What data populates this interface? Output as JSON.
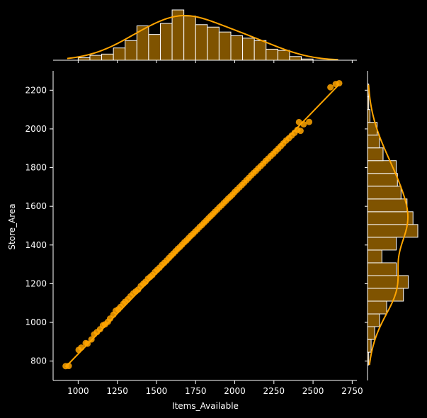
{
  "chart_data": {
    "type": "scatter",
    "kind": "jointplot",
    "xlabel": "Items_Available",
    "ylabel": "Store_Area",
    "xlim": [
      840,
      2780
    ],
    "ylim": [
      700,
      2300
    ],
    "x_ticks": [
      1000,
      1250,
      1500,
      1750,
      2000,
      2250,
      2500,
      2750
    ],
    "y_ticks": [
      800,
      1000,
      1200,
      1400,
      1600,
      1800,
      2000,
      2200
    ],
    "grid": false,
    "legend": "none",
    "colors": {
      "background": "#000000",
      "points": "#ffa500",
      "fit_line": "#ffa500",
      "bars": "#7f5300",
      "bar_edge": "#ffffff",
      "kde": "#ffa500",
      "axes": "#ffffff"
    },
    "regression_line": {
      "x": [
        920,
        2667
      ],
      "y": [
        770,
        2230
      ]
    },
    "points": {
      "x": [
        920,
        940,
        1003,
        1020,
        1048,
        1060,
        1085,
        1102,
        1120,
        1140,
        1158,
        1172,
        1190,
        1204,
        1225,
        1240,
        1257,
        1270,
        1288,
        1300,
        1318,
        1334,
        1352,
        1368,
        1383,
        1400,
        1416,
        1430,
        1446,
        1460,
        1474,
        1490,
        1505,
        1520,
        1535,
        1550,
        1565,
        1580,
        1594,
        1608,
        1622,
        1636,
        1650,
        1664,
        1678,
        1692,
        1706,
        1720,
        1734,
        1748,
        1762,
        1776,
        1790,
        1804,
        1818,
        1832,
        1846,
        1860,
        1874,
        1888,
        1902,
        1916,
        1930,
        1944,
        1958,
        1972,
        1986,
        2000,
        2015,
        2030,
        2045,
        2060,
        2075,
        2090,
        2105,
        2120,
        2135,
        2150,
        2166,
        2182,
        2198,
        2214,
        2230,
        2246,
        2262,
        2278,
        2294,
        2310,
        2328,
        2346,
        2364,
        2382,
        2400,
        2410,
        2420,
        2440,
        2475,
        2611,
        2645,
        2667
      ],
      "y": [
        774,
        775,
        858,
        870,
        893,
        890,
        912,
        938,
        950,
        965,
        985,
        990,
        1003,
        1020,
        1040,
        1060,
        1068,
        1080,
        1096,
        1107,
        1120,
        1135,
        1150,
        1160,
        1170,
        1188,
        1200,
        1210,
        1226,
        1235,
        1245,
        1260,
        1272,
        1283,
        1297,
        1308,
        1320,
        1333,
        1345,
        1356,
        1368,
        1380,
        1390,
        1402,
        1414,
        1424,
        1436,
        1448,
        1458,
        1470,
        1481,
        1493,
        1503,
        1515,
        1526,
        1538,
        1549,
        1560,
        1572,
        1583,
        1595,
        1605,
        1617,
        1628,
        1640,
        1650,
        1661,
        1674,
        1686,
        1698,
        1710,
        1722,
        1735,
        1747,
        1760,
        1772,
        1783,
        1796,
        1808,
        1821,
        1835,
        1847,
        1860,
        1872,
        1885,
        1898,
        1911,
        1925,
        1940,
        1952,
        1966,
        1980,
        1995,
        2035,
        1990,
        2024,
        2036,
        2215,
        2232,
        2236
      ]
    },
    "x_histogram": {
      "bin_edges": [
        1000,
        1075,
        1150,
        1225,
        1300,
        1375,
        1450,
        1525,
        1600,
        1675,
        1750,
        1825,
        1900,
        1975,
        2050,
        2125,
        2200,
        2275,
        2350,
        2425,
        2500
      ],
      "counts": [
        2,
        4,
        5,
        10,
        16,
        28,
        21,
        30,
        41,
        36,
        29,
        27,
        23,
        20,
        18,
        16,
        9,
        8,
        3,
        1
      ]
    },
    "y_histogram": {
      "bin_edges": [
        780,
        846,
        912,
        978,
        1044,
        1110,
        1176,
        1242,
        1308,
        1374,
        1440,
        1506,
        1572,
        1638,
        1704,
        1770,
        1836,
        1902,
        1968,
        2034,
        2100,
        2166,
        2232
      ],
      "counts": [
        1,
        3,
        6,
        10,
        16,
        30,
        34,
        24,
        12,
        24,
        42,
        38,
        33,
        28,
        25,
        24,
        13,
        10,
        8,
        2,
        1,
        1
      ]
    }
  }
}
